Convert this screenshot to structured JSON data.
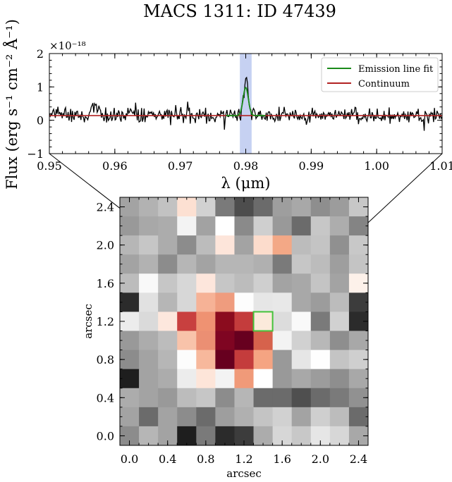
{
  "title": "MACS 1311: ID 47439",
  "chart_data": [
    {
      "type": "line",
      "name": "spectrum",
      "xlabel": "λ (μm)",
      "ylabel": "Flux (erg s⁻¹ cm⁻² Å⁻¹)",
      "y_scale_label": "×10⁻¹⁸",
      "xlim": [
        0.95,
        1.01
      ],
      "ylim": [
        -1,
        2
      ],
      "x_ticks": [
        0.95,
        0.96,
        0.97,
        0.98,
        0.99,
        1.0,
        1.01
      ],
      "x_tick_labels": [
        "0.95",
        "0.96",
        "0.97",
        "0.98",
        "0.99",
        "1.00",
        "1.01"
      ],
      "y_ticks": [
        -1,
        0,
        1,
        2
      ],
      "y_tick_labels": [
        "−1",
        "0",
        "1",
        "2"
      ],
      "highlight_band": [
        0.9791,
        0.9809
      ],
      "highlight_color": "#c6d1f2",
      "legend_position": "top-right",
      "series": [
        {
          "name": "Emission line fit",
          "color": "#1a8a1a",
          "center": 0.98,
          "peak": 0.98,
          "sigma": 0.0004,
          "baseline": 0.14
        },
        {
          "name": "Continuum",
          "color": "#b22222",
          "y": 0.14
        },
        {
          "color": "#000000",
          "peaks": [
            [
              0.9569,
              0.62
            ],
            [
              0.98,
              1.2
            ]
          ],
          "noise_sigma": 0.13
        }
      ]
    },
    {
      "type": "heatmap",
      "name": "flux-map",
      "xlabel": "arcsec",
      "ylabel": "arcsec",
      "xlim": [
        -0.1,
        2.5
      ],
      "ylim": [
        -0.1,
        2.5
      ],
      "x_ticks": [
        0.0,
        0.4,
        0.8,
        1.2,
        1.6,
        2.0,
        2.4
      ],
      "x_tick_labels": [
        "0.0",
        "0.4",
        "0.8",
        "1.2",
        "1.6",
        "2.0",
        "2.4"
      ],
      "y_ticks": [
        0.0,
        0.4,
        0.8,
        1.2,
        1.6,
        2.0,
        2.4
      ],
      "y_tick_labels": [
        "0.0",
        "0.4",
        "0.8",
        "1.2",
        "1.6",
        "2.0",
        "2.4"
      ],
      "pixel_size": 0.2,
      "highlight_pixel": [
        1.4,
        1.2
      ],
      "highlight_color": "#44c23a",
      "rows": [
        [
          "#a3a3a3",
          "#b2b2b2",
          "#c2c2c2",
          "#fce0d2",
          "#d1d1d1",
          "#7a7a7a",
          "#4d4d4d",
          "#6b6b6b",
          "#9e9e9e",
          "#a8a8a8",
          "#8e8e8e",
          "#9c9c9c",
          "#c7c7c7"
        ],
        [
          "#999999",
          "#a8a8a8",
          "#acacac",
          "#f3f3f3",
          "#a2a2a2",
          "#ffffff",
          "#8a8a8a",
          "#cfcfcf",
          "#999999",
          "#6b6b6b",
          "#c7c7c7",
          "#adadad",
          "#848484"
        ],
        [
          "#b6b6b6",
          "#c6c6c6",
          "#acacac",
          "#8c8c8c",
          "#bcbcbc",
          "#fde5da",
          "#a3a3a3",
          "#fcdccc",
          "#f3a886",
          "#bcbcbc",
          "#c4c4c4",
          "#909090",
          "#c8c8c8"
        ],
        [
          "#a3a3a3",
          "#b2b2b2",
          "#8c8c8c",
          "#b6b6b6",
          "#a3a3a3",
          "#b6b6b6",
          "#b6b6b6",
          "#b0b0b0",
          "#7a7a7a",
          "#c6c6c6",
          "#bcbcbc",
          "#9e9e9e",
          "#c4c4c4"
        ],
        [
          "#bcbcbc",
          "#f9f9f9",
          "#c6c6c6",
          "#d7d7d7",
          "#fde6dc",
          "#c6c6c6",
          "#bcbcbc",
          "#cfcfcf",
          "#a3a3a3",
          "#a8a8a8",
          "#c4c4c4",
          "#a3a3a3",
          "#fdf1ea"
        ],
        [
          "#2b2b2b",
          "#e1e1e1",
          "#b6b6b6",
          "#d7d7d7",
          "#f6b296",
          "#ef9c7e",
          "#fdfdfd",
          "#e6e6e6",
          "#e8e8e8",
          "#a8a8a8",
          "#9c9c9c",
          "#bcbcbc",
          "#3c3c3c"
        ],
        [
          "#ececec",
          "#dadada",
          "#fde7dd",
          "#c8403f",
          "#ef9272",
          "#8b0c1e",
          "#c43c3c",
          "#fbeadb",
          "#dcdcdc",
          "#f9f9f9",
          "#7a7a7a",
          "#d1d1d1",
          "#2b2b2b"
        ],
        [
          "#999999",
          "#acacac",
          "#bcbcbc",
          "#f8c3aa",
          "#eb8f73",
          "#7f0522",
          "#67001f",
          "#d6624c",
          "#f3f3f3",
          "#d1d1d1",
          "#b8b8b8",
          "#8e8e8e",
          "#a8a8a8"
        ],
        [
          "#8c8c8c",
          "#a3a3a3",
          "#b6b6b6",
          "#fcfcfc",
          "#f7b89c",
          "#67001f",
          "#c43c3c",
          "#f5a482",
          "#999999",
          "#e6e6e6",
          "#fefefe",
          "#c4c4c4",
          "#cfcfcf"
        ],
        [
          "#1e1e1e",
          "#a3a3a3",
          "#acacac",
          "#ececec",
          "#fde5d9",
          "#f3f3f3",
          "#f09a79",
          "#ffffff",
          "#999999",
          "#a8a8a8",
          "#9c9c9c",
          "#8e8e8e",
          "#a8a8a8"
        ],
        [
          "#acacac",
          "#a3a3a3",
          "#999999",
          "#bcbcbc",
          "#c6c6c6",
          "#8c8c8c",
          "#b6b6b6",
          "#6b6b6b",
          "#6b6b6b",
          "#4f4f4f",
          "#6b6b6b",
          "#7a7a7a",
          "#919191"
        ],
        [
          "#a3a3a3",
          "#6b6b6b",
          "#a3a3a3",
          "#8c8c8c",
          "#6b6b6b",
          "#9e9e9e",
          "#b0b0b0",
          "#c4c4c4",
          "#d1d1d1",
          "#a3a3a3",
          "#cfcfcf",
          "#bcbcbc",
          "#6b6b6b"
        ],
        [
          "#8c8c8c",
          "#b6b6b6",
          "#a3a3a3",
          "#1e1e1e",
          "#7a7a7a",
          "#2b2b2b",
          "#3c3c3c",
          "#acacac",
          "#d7d7d7",
          "#c8c8c8",
          "#e6e6e6",
          "#d7d7d7",
          "#a8a8a8"
        ]
      ]
    }
  ]
}
